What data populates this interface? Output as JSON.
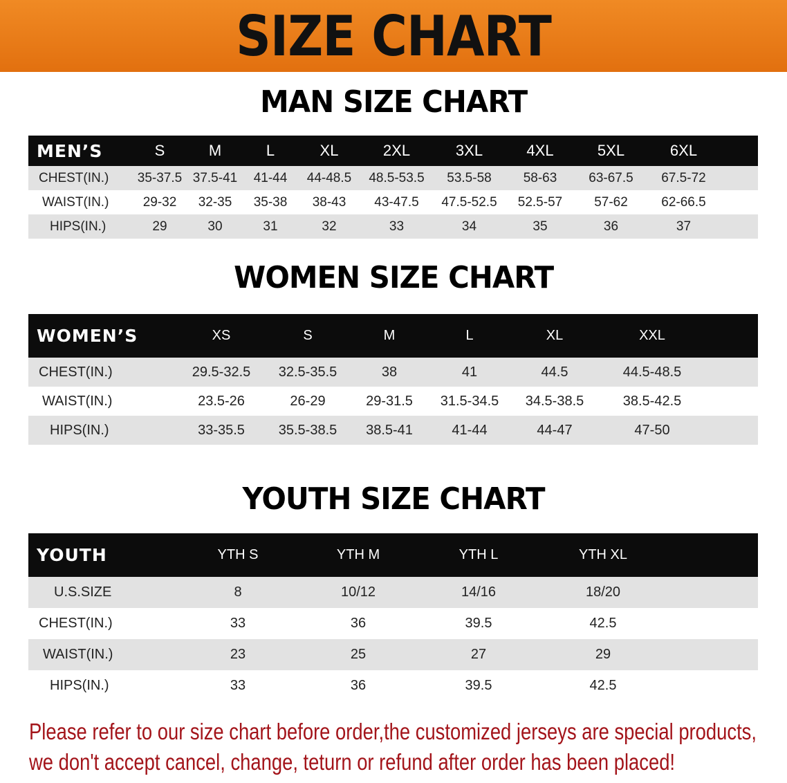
{
  "banner_title": "SIZE CHART",
  "colors": {
    "banner": "#e87a1a",
    "header_row": "#0c0c0c",
    "stripe": "#e2e2e2",
    "note": "#a3141a"
  },
  "men": {
    "title": "MAN SIZE CHART",
    "header": [
      "MEN’S",
      "S",
      "M",
      "L",
      "XL",
      "2XL",
      "3XL",
      "4XL",
      "5XL",
      "6XL"
    ],
    "rows": [
      [
        "CHEST(IN.)",
        "35-37.5",
        "37.5-41",
        "41-44",
        "44-48.5",
        "48.5-53.5",
        "53.5-58",
        "58-63",
        "63-67.5",
        "67.5-72"
      ],
      [
        "WAIST(IN.)",
        "29-32",
        "32-35",
        "35-38",
        "38-43",
        "43-47.5",
        "47.5-52.5",
        "52.5-57",
        "57-62",
        "62-66.5"
      ],
      [
        "HIPS(IN.)",
        "29",
        "30",
        "31",
        "32",
        "33",
        "34",
        "35",
        "36",
        "37"
      ]
    ]
  },
  "women": {
    "title": "WOMEN SIZE CHART",
    "header": [
      "WOMEN’S",
      "XS",
      "S",
      "M",
      "L",
      "XL",
      "XXL"
    ],
    "rows": [
      [
        "CHEST(IN.)",
        "29.5-32.5",
        "32.5-35.5",
        "38",
        "41",
        "44.5",
        "44.5-48.5"
      ],
      [
        "WAIST(IN.)",
        "23.5-26",
        "26-29",
        "29-31.5",
        "31.5-34.5",
        "34.5-38.5",
        "38.5-42.5"
      ],
      [
        "HIPS(IN.)",
        "33-35.5",
        "35.5-38.5",
        "38.5-41",
        "41-44",
        "44-47",
        "47-50"
      ]
    ]
  },
  "youth": {
    "title": "YOUTH SIZE CHART",
    "header": [
      "YOUTH",
      "YTH S",
      "YTH M",
      "YTH L",
      "YTH XL"
    ],
    "rows": [
      [
        "U.S.SIZE",
        "8",
        "10/12",
        "14/16",
        "18/20"
      ],
      [
        "CHEST(IN.)",
        "33",
        "36",
        "39.5",
        "42.5"
      ],
      [
        "WAIST(IN.)",
        "23",
        "25",
        "27",
        "29"
      ],
      [
        "HIPS(IN.)",
        "33",
        "36",
        "39.5",
        "42.5"
      ]
    ]
  },
  "note": {
    "line1": "Please refer to our size chart before order,the customized jerseys are special products,",
    "line2": "we don't accept cancel, change, teturn or refund after order has been placed!"
  }
}
